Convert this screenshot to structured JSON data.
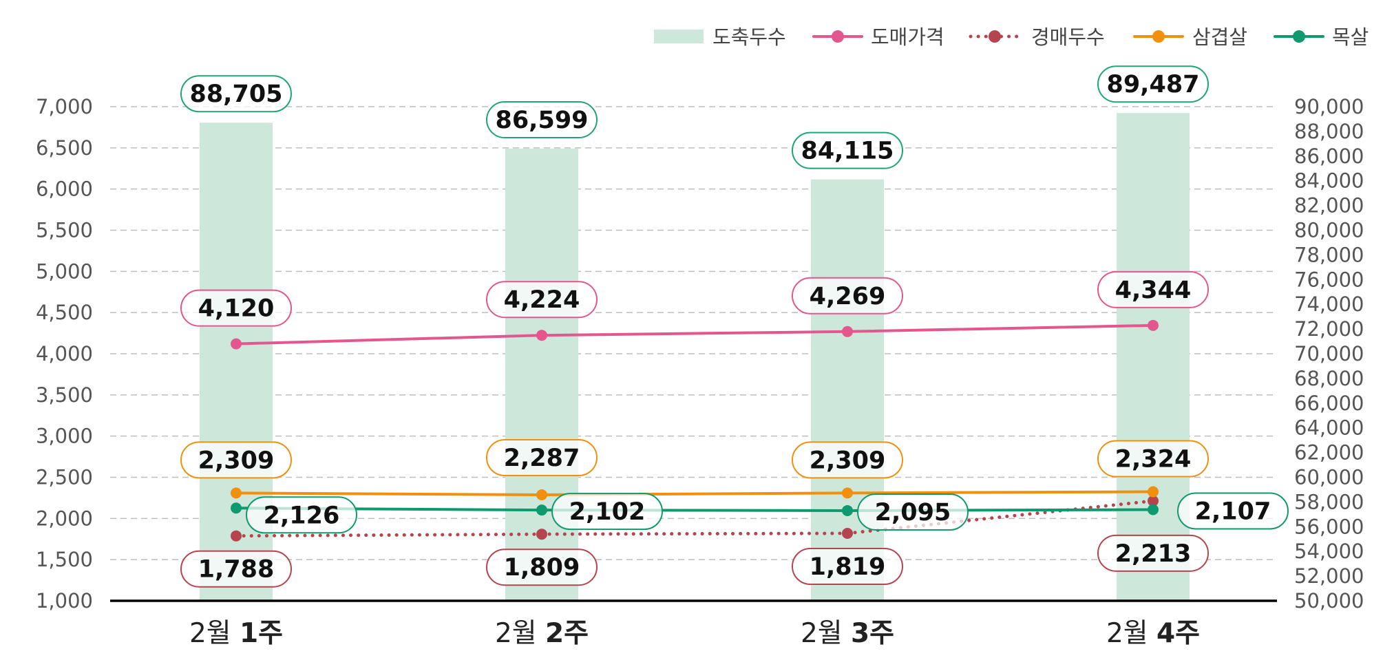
{
  "chart_data": {
    "type": "bar+line",
    "categories": [
      {
        "prefix": "2월 ",
        "main": "1주"
      },
      {
        "prefix": "2월 ",
        "main": "2주"
      },
      {
        "prefix": "2월 ",
        "main": "3주"
      },
      {
        "prefix": "2월 ",
        "main": "4주"
      }
    ],
    "y_left": {
      "min": 1000,
      "max": 7000,
      "step": 500
    },
    "y_right": {
      "min": 50000,
      "max": 90000,
      "step": 2000
    },
    "grid": true,
    "legend_position": "top-right",
    "bar_series": {
      "name": "도축두수",
      "axis": "right",
      "color": "#cde7da",
      "values": [
        88705,
        86599,
        84115,
        89487
      ],
      "labels": [
        "88,705",
        "86,599",
        "84,115",
        "89,487"
      ],
      "label_border": "#1fa37a"
    },
    "line_series": [
      {
        "name": "도매가격",
        "axis": "left",
        "color": "#e4568e",
        "dotted": false,
        "values": [
          4120,
          4224,
          4269,
          4344
        ],
        "labels": [
          "4,120",
          "4,224",
          "4,269",
          "4,344"
        ]
      },
      {
        "name": "경매두수",
        "axis": "left",
        "color": "#b5444e",
        "dotted": true,
        "values": [
          1788,
          1809,
          1819,
          2213
        ],
        "labels": [
          "1,788",
          "1,809",
          "1,819",
          "2,213"
        ]
      },
      {
        "name": "삼겹살",
        "axis": "left",
        "color": "#f0900e",
        "dotted": false,
        "values": [
          2309,
          2287,
          2309,
          2324
        ],
        "labels": [
          "2,309",
          "2,287",
          "2,309",
          "2,324"
        ]
      },
      {
        "name": "목살",
        "axis": "left",
        "color": "#0e9a6e",
        "dotted": false,
        "values": [
          2126,
          2102,
          2095,
          2107
        ],
        "labels": [
          "2,126",
          "2,102",
          "2,095",
          "2,107"
        ]
      }
    ]
  }
}
